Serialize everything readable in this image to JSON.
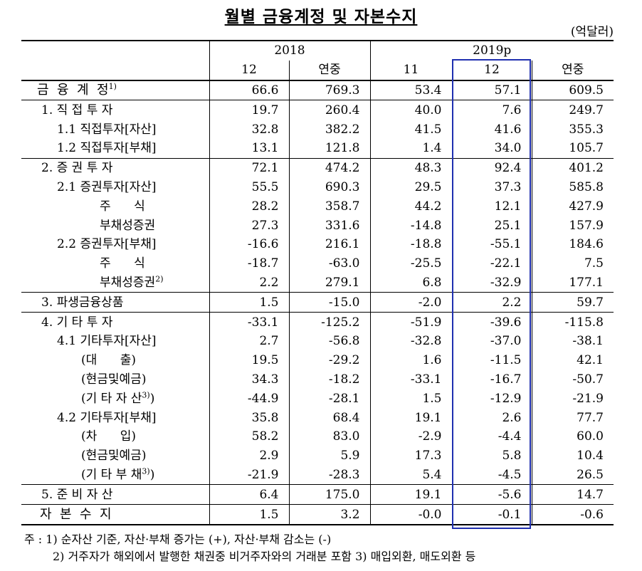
{
  "title": "월별 금융계정 및 자본수지",
  "unit": "(억달러)",
  "header": {
    "year_2018": "2018",
    "year_2019": "2019p",
    "sub": [
      "12",
      "연중",
      "11",
      "12",
      "연중"
    ]
  },
  "highlight_color": "#1f2fb0",
  "rows": [
    {
      "label": "금  융  계  정",
      "sup": "1)",
      "v": [
        "66.6",
        "769.3",
        "53.4",
        "57.1",
        "609.5"
      ]
    },
    {
      "label": "1. 직 접 투 자",
      "sup": "",
      "v": [
        "19.7",
        "260.4",
        "40.0",
        "7.6",
        "249.7"
      ]
    },
    {
      "label": "1.1 직접투자[자산]",
      "sup": "",
      "v": [
        "32.8",
        "382.2",
        "41.5",
        "41.6",
        "355.3"
      ]
    },
    {
      "label": "1.2 직접투자[부채]",
      "sup": "",
      "v": [
        "13.1",
        "121.8",
        "1.4",
        "34.0",
        "105.7"
      ]
    },
    {
      "label": "2. 증 권 투 자",
      "sup": "",
      "v": [
        "72.1",
        "474.2",
        "48.3",
        "92.4",
        "401.2"
      ]
    },
    {
      "label": "2.1 증권투자[자산]",
      "sup": "",
      "v": [
        "55.5",
        "690.3",
        "29.5",
        "37.3",
        "585.8"
      ]
    },
    {
      "label": "주      식",
      "sup": "",
      "v": [
        "28.2",
        "358.7",
        "44.2",
        "12.1",
        "427.9"
      ]
    },
    {
      "label": "부채성증권",
      "sup": "",
      "v": [
        "27.3",
        "331.6",
        "-14.8",
        "25.1",
        "157.9"
      ]
    },
    {
      "label": "2.2 증권투자[부채]",
      "sup": "",
      "v": [
        "-16.6",
        "216.1",
        "-18.8",
        "-55.1",
        "184.6"
      ]
    },
    {
      "label": "주      식",
      "sup": "",
      "v": [
        "-18.7",
        "-63.0",
        "-25.5",
        "-22.1",
        "7.5"
      ]
    },
    {
      "label": "부채성증권",
      "sup": "2)",
      "v": [
        "2.2",
        "279.1",
        "6.8",
        "-32.9",
        "177.1"
      ]
    },
    {
      "label": "3. 파생금융상품",
      "sup": "",
      "v": [
        "1.5",
        "-15.0",
        "-2.0",
        "2.2",
        "59.7"
      ]
    },
    {
      "label": "4. 기 타 투 자",
      "sup": "",
      "v": [
        "-33.1",
        "-125.2",
        "-51.9",
        "-39.6",
        "-115.8"
      ]
    },
    {
      "label": "4.1 기타투자[자산]",
      "sup": "",
      "v": [
        "2.7",
        "-56.8",
        "-32.8",
        "-37.0",
        "-38.1"
      ]
    },
    {
      "label": "(대      출)",
      "sup": "",
      "v": [
        "19.5",
        "-29.2",
        "1.6",
        "-11.5",
        "42.1"
      ]
    },
    {
      "label": "(현금및예금)",
      "sup": "",
      "v": [
        "34.3",
        "-18.2",
        "-33.1",
        "-16.7",
        "-50.7"
      ]
    },
    {
      "label": "(기 타 자 산",
      "sup": "3)",
      "close": ")",
      "v": [
        "-44.9",
        "-28.1",
        "1.5",
        "-12.9",
        "-21.9"
      ]
    },
    {
      "label": "4.2 기타투자[부채]",
      "sup": "",
      "v": [
        "35.8",
        "68.4",
        "19.1",
        "2.6",
        "77.7"
      ]
    },
    {
      "label": "(차      입)",
      "sup": "",
      "v": [
        "58.2",
        "83.0",
        "-2.9",
        "-4.4",
        "60.0"
      ]
    },
    {
      "label": "(현금및예금)",
      "sup": "",
      "v": [
        "2.9",
        "5.9",
        "17.3",
        "5.8",
        "10.4"
      ]
    },
    {
      "label": "(기 타 부 채",
      "sup": "3)",
      "close": ")",
      "v": [
        "-21.9",
        "-28.3",
        "5.4",
        "-4.5",
        "26.5"
      ]
    },
    {
      "label": "5. 준 비 자 산",
      "sup": "",
      "v": [
        "6.4",
        "175.0",
        "19.1",
        "-5.6",
        "14.7"
      ]
    },
    {
      "label": "자  본  수  지",
      "sup": "",
      "v": [
        "1.5",
        "3.2",
        "-0.0",
        "-0.1",
        "-0.6"
      ]
    }
  ],
  "notes": {
    "line1": "주 : 1) 순자산 기준, 자산·부채 증가는 (+), 자산·부채 감소는 (-)",
    "line2": "2) 거주자가 해외에서 발행한 채권중 비거주자와의 거래분 포함  3) 매입외환, 매도외환 등"
  }
}
